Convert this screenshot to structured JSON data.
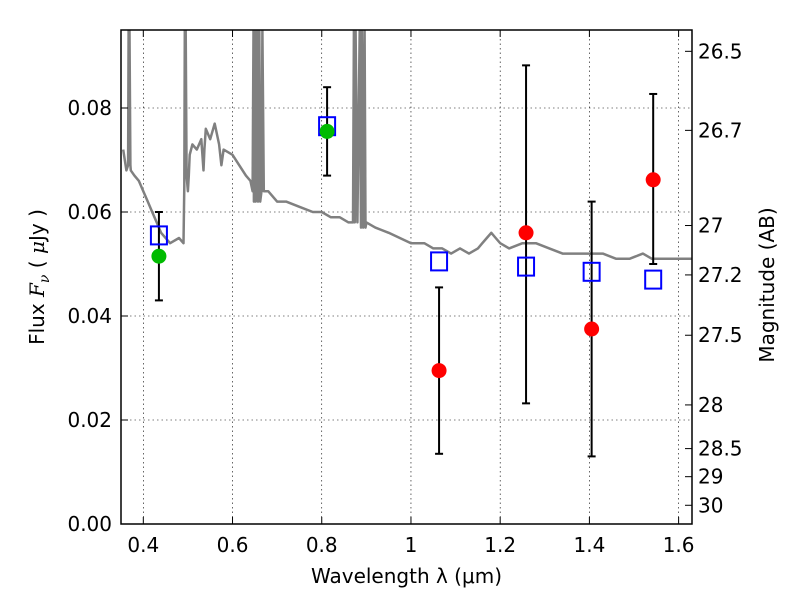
{
  "chart_data": {
    "type": "scatter",
    "xlabel": "Wavelength  λ (μm)",
    "ylabel_parts": [
      "Flux  ",
      "F",
      "ν",
      "  ( ",
      "μ",
      "Jy )"
    ],
    "ylabel_right": "Magnitude (AB)",
    "xlim": [
      0.35,
      1.63
    ],
    "ylim": [
      0.0,
      0.095
    ],
    "grid": true,
    "x_ticks": [
      0.4,
      0.6,
      0.8,
      1.0,
      1.2,
      1.4,
      1.6
    ],
    "x_tick_labels": [
      "0.4",
      "0.6",
      "0.8",
      "1",
      "1.2",
      "1.4",
      "1.6"
    ],
    "y_ticks": [
      0.0,
      0.02,
      0.04,
      0.06,
      0.08
    ],
    "y_tick_labels": [
      "0.00",
      "0.02",
      "0.04",
      "0.06",
      "0.08"
    ],
    "right_ticks": [
      {
        "label": "26.5",
        "flux": 0.0909
      },
      {
        "label": "26.7",
        "flux": 0.0757
      },
      {
        "label": "27",
        "flux": 0.0574
      },
      {
        "label": "27.2",
        "flux": 0.0479
      },
      {
        "label": "27.5",
        "flux": 0.0363
      },
      {
        "label": "28",
        "flux": 0.0229
      },
      {
        "label": "28.5",
        "flux": 0.0145
      },
      {
        "label": "29",
        "flux": 0.0091
      },
      {
        "label": "30",
        "flux": 0.0036
      }
    ],
    "series": [
      {
        "kind": "model_spectrum",
        "color": "#808080",
        "x": [
          0.355,
          0.362,
          0.366,
          0.367,
          0.369,
          0.371,
          0.372,
          0.38,
          0.39,
          0.4,
          0.41,
          0.42,
          0.43,
          0.44,
          0.46,
          0.48,
          0.49,
          0.492,
          0.493,
          0.495,
          0.497,
          0.5,
          0.502,
          0.504,
          0.51,
          0.52,
          0.53,
          0.535,
          0.537,
          0.54,
          0.545,
          0.55,
          0.56,
          0.57,
          0.575,
          0.58,
          0.6,
          0.63,
          0.64,
          0.645,
          0.647,
          0.648,
          0.65,
          0.652,
          0.655,
          0.657,
          0.66,
          0.662,
          0.665,
          0.667,
          0.67,
          0.68,
          0.7,
          0.72,
          0.75,
          0.78,
          0.8,
          0.82,
          0.84,
          0.86,
          0.87,
          0.872,
          0.874,
          0.876,
          0.88,
          0.885,
          0.888,
          0.89,
          0.893,
          0.896,
          0.898,
          0.9,
          0.92,
          0.95,
          1.0,
          1.03,
          1.05,
          1.07,
          1.09,
          1.11,
          1.13,
          1.15,
          1.16,
          1.17,
          1.18,
          1.19,
          1.2,
          1.22,
          1.25,
          1.28,
          1.31,
          1.34,
          1.37,
          1.4,
          1.43,
          1.46,
          1.49,
          1.52,
          1.54,
          1.57,
          1.6,
          1.63
        ],
        "y": [
          0.072,
          0.068,
          0.069,
          0.095,
          0.095,
          0.069,
          0.068,
          0.067,
          0.066,
          0.064,
          0.062,
          0.06,
          0.058,
          0.056,
          0.054,
          0.055,
          0.054,
          0.065,
          0.095,
          0.095,
          0.067,
          0.064,
          0.067,
          0.071,
          0.073,
          0.072,
          0.074,
          0.068,
          0.072,
          0.076,
          0.075,
          0.074,
          0.077,
          0.073,
          0.069,
          0.072,
          0.071,
          0.067,
          0.066,
          0.064,
          0.095,
          0.062,
          0.095,
          0.062,
          0.095,
          0.062,
          0.095,
          0.062,
          0.064,
          0.095,
          0.064,
          0.064,
          0.062,
          0.062,
          0.061,
          0.06,
          0.06,
          0.059,
          0.059,
          0.058,
          0.058,
          0.095,
          0.058,
          0.095,
          0.058,
          0.095,
          0.057,
          0.095,
          0.057,
          0.095,
          0.057,
          0.058,
          0.057,
          0.056,
          0.054,
          0.054,
          0.053,
          0.053,
          0.052,
          0.053,
          0.052,
          0.053,
          0.054,
          0.055,
          0.056,
          0.055,
          0.054,
          0.053,
          0.054,
          0.054,
          0.053,
          0.052,
          0.052,
          0.052,
          0.052,
          0.051,
          0.051,
          0.052,
          0.051,
          0.051,
          0.051,
          0.051
        ]
      },
      {
        "kind": "model_photometry",
        "marker": "open-square",
        "color": "#0000ff",
        "x": [
          0.435,
          0.812,
          1.063,
          1.258,
          1.405,
          1.543
        ],
        "y": [
          0.0555,
          0.0765,
          0.0505,
          0.0495,
          0.0485,
          0.047
        ]
      },
      {
        "kind": "detections",
        "marker": "filled-circle",
        "color": "#00bb00",
        "x": [
          0.435,
          0.812
        ],
        "y": [
          0.0515,
          0.0755
        ],
        "yerr_low": [
          0.043,
          0.067
        ],
        "yerr_high": [
          0.06,
          0.084
        ]
      },
      {
        "kind": "detections",
        "marker": "filled-circle",
        "color": "#ff0000",
        "x": [
          1.063,
          1.258,
          1.405,
          1.543
        ],
        "y": [
          0.0295,
          0.056,
          0.0375,
          0.0662
        ],
        "yerr_low": [
          0.0135,
          0.0232,
          0.013,
          0.05
        ],
        "yerr_high": [
          0.0455,
          0.0882,
          0.062,
          0.0827
        ]
      }
    ]
  }
}
